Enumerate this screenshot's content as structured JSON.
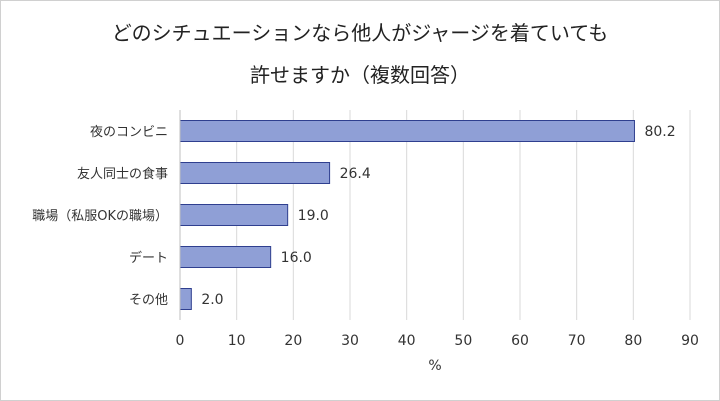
{
  "chart_data": {
    "type": "bar",
    "orientation": "horizontal",
    "title": "どのシチュエーションなら他人がジャージを着ていても",
    "subtitle": "許せますか（複数回答）",
    "categories": [
      "夜のコンビニ",
      "友人同士の食事",
      "職場（私服OKの職場）",
      "デート",
      "その他"
    ],
    "values": [
      80.2,
      26.4,
      19.0,
      16.0,
      2.0
    ],
    "value_labels": [
      "80.2",
      "26.4",
      "19.0",
      "16.0",
      "2.0"
    ],
    "xlim": [
      0,
      90
    ],
    "xticks": [
      "0",
      "10",
      "20",
      "30",
      "40",
      "50",
      "60",
      "70",
      "80",
      "90"
    ],
    "xlabel": "%",
    "ylabel": "",
    "grid": true,
    "bar_color": "#8f9fd6",
    "bar_edge_color": "#2f3f8f"
  }
}
